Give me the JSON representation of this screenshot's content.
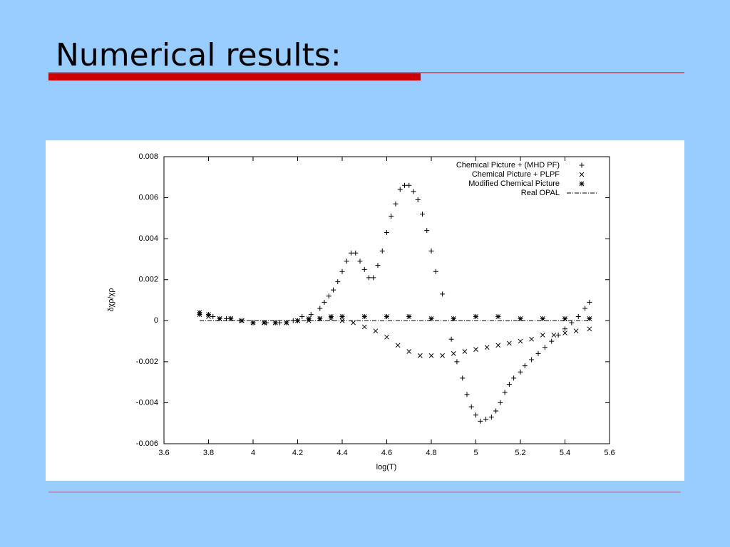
{
  "slide": {
    "title": "Numerical results:"
  },
  "chart_data": {
    "type": "scatter",
    "xlabel": "log(T)",
    "ylabel": "δχρ/χρ",
    "xlim": [
      3.6,
      5.6
    ],
    "xticks": [
      3.6,
      3.8,
      4,
      4.2,
      4.4,
      4.6,
      4.8,
      5,
      5.2,
      5.4,
      5.6
    ],
    "ylim": [
      -0.006,
      0.008
    ],
    "yticks": [
      -0.006,
      -0.004,
      -0.002,
      0,
      0.002,
      0.004,
      0.006,
      0.008
    ],
    "legend": "top-right",
    "series": [
      {
        "name": "Chemical Picture + (MHD PF)",
        "marker": "plus",
        "color": "#000000",
        "x": [
          3.76,
          3.82,
          3.88,
          3.94,
          4.0,
          4.06,
          4.12,
          4.18,
          4.22,
          4.26,
          4.3,
          4.32,
          4.34,
          4.36,
          4.38,
          4.4,
          4.42,
          4.44,
          4.46,
          4.48,
          4.5,
          4.52,
          4.54,
          4.56,
          4.58,
          4.6,
          4.62,
          4.64,
          4.66,
          4.68,
          4.7,
          4.72,
          4.74,
          4.76,
          4.78,
          4.8,
          4.82,
          4.85,
          4.89,
          4.915,
          4.94,
          4.96,
          4.98,
          5.0,
          5.02,
          5.045,
          5.07,
          5.09,
          5.11,
          5.13,
          5.15,
          5.17,
          5.2,
          5.22,
          5.25,
          5.28,
          5.31,
          5.34,
          5.37,
          5.4,
          5.43,
          5.46,
          5.49,
          5.51
        ],
        "values": [
          0.0003,
          0.0002,
          0.0001,
          0.0,
          -0.0001,
          -0.0001,
          -0.0001,
          0.0,
          0.0002,
          0.0003,
          0.0006,
          0.0009,
          0.0012,
          0.0015,
          0.0019,
          0.0024,
          0.0029,
          0.0033,
          0.0033,
          0.0029,
          0.0025,
          0.0021,
          0.0021,
          0.0027,
          0.0034,
          0.0043,
          0.0051,
          0.0057,
          0.0064,
          0.0066,
          0.0066,
          0.0063,
          0.0059,
          0.0052,
          0.0044,
          0.0034,
          0.0024,
          0.0013,
          -0.0009,
          -0.002,
          -0.0028,
          -0.0036,
          -0.0042,
          -0.0046,
          -0.0049,
          -0.0048,
          -0.0047,
          -0.0044,
          -0.004,
          -0.0035,
          -0.0031,
          -0.0028,
          -0.0025,
          -0.0022,
          -0.0019,
          -0.0016,
          -0.0013,
          -0.001,
          -0.0007,
          -0.0004,
          -0.0001,
          0.0002,
          0.0006,
          0.0009
        ]
      },
      {
        "name": "Chemical Picture + PLPF",
        "marker": "cross",
        "color": "#000000",
        "x": [
          3.76,
          3.8,
          3.85,
          3.9,
          3.95,
          4.0,
          4.05,
          4.1,
          4.15,
          4.2,
          4.25,
          4.3,
          4.35,
          4.4,
          4.45,
          4.5,
          4.55,
          4.6,
          4.65,
          4.7,
          4.75,
          4.8,
          4.85,
          4.9,
          4.95,
          5.0,
          5.05,
          5.1,
          5.15,
          5.2,
          5.25,
          5.3,
          5.35,
          5.4,
          5.45,
          5.51
        ],
        "values": [
          0.0003,
          0.0002,
          0.0001,
          0.0001,
          0.0,
          -0.0001,
          -0.0001,
          -0.0001,
          -0.0001,
          0.0,
          0.0,
          0.0001,
          0.0001,
          0.0,
          -0.0001,
          -0.0003,
          -0.0005,
          -0.0008,
          -0.0012,
          -0.0015,
          -0.0017,
          -0.0017,
          -0.0017,
          -0.0016,
          -0.0015,
          -0.0014,
          -0.0013,
          -0.0012,
          -0.0011,
          -0.001,
          -0.0009,
          -0.0007,
          -0.0007,
          -0.0006,
          -0.0005,
          -0.0004
        ]
      },
      {
        "name": "Modified Chemical Picture",
        "marker": "star",
        "color": "#000000",
        "x": [
          3.76,
          3.8,
          3.85,
          3.9,
          3.95,
          4.0,
          4.05,
          4.1,
          4.15,
          4.2,
          4.25,
          4.3,
          4.35,
          4.4,
          4.5,
          4.6,
          4.7,
          4.8,
          4.9,
          5.0,
          5.1,
          5.2,
          5.3,
          5.4,
          5.51
        ],
        "values": [
          0.0004,
          0.0003,
          0.0001,
          0.0001,
          0.0,
          -0.0001,
          -0.0001,
          -0.0001,
          -0.0001,
          0.0,
          0.0001,
          0.0001,
          0.0002,
          0.0002,
          0.0002,
          0.0002,
          0.0002,
          0.0001,
          0.0001,
          0.0002,
          0.0002,
          0.0001,
          0.0001,
          0.0001,
          0.0001
        ]
      },
      {
        "name": "Real OPAL",
        "marker": "dashdot",
        "color": "#000000",
        "x": [
          3.76,
          5.51
        ],
        "values": [
          0,
          0
        ]
      }
    ]
  }
}
